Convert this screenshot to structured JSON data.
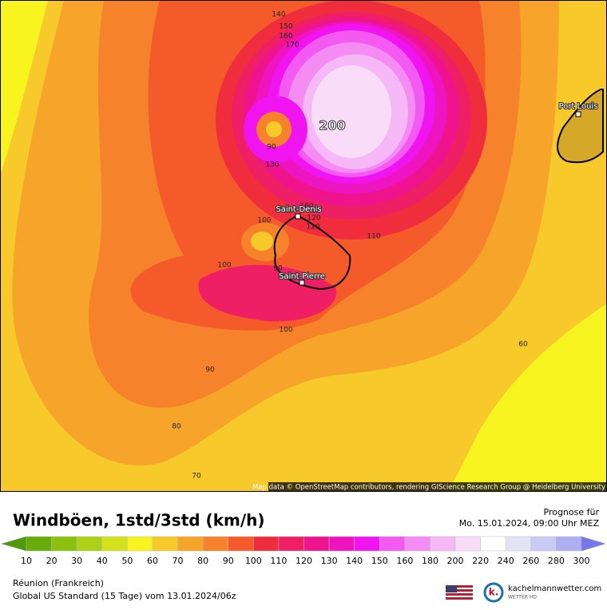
{
  "map": {
    "contour_labels": [
      140,
      150,
      160,
      170,
      200,
      90,
      130,
      160,
      100,
      120,
      120,
      110,
      100,
      90,
      100,
      90,
      80,
      70,
      60
    ],
    "places": [
      "Port Louis",
      "Saint-Denis",
      "Saint-Pierre"
    ],
    "attribution": "Map data © OpenStreetMap contributors, rendering GIScience Research Group @ Heidelberg University"
  },
  "header": {
    "title": "Windböen, 1std/3std (km/h)",
    "forecast_label": "Prognose für",
    "forecast_time": "Mo. 15.01.2024, 09:00 Uhr MEZ"
  },
  "legend": {
    "values": [
      10,
      20,
      30,
      40,
      50,
      60,
      70,
      80,
      90,
      100,
      110,
      120,
      130,
      140,
      150,
      160,
      180,
      200,
      220,
      240,
      260,
      280,
      300
    ],
    "colors": [
      "#4f9a0a",
      "#6aab0c",
      "#8cc00f",
      "#aed018",
      "#d4e21e",
      "#f8f420",
      "#f7c92a",
      "#f6a52a",
      "#f6822b",
      "#f55a2b",
      "#f02d3c",
      "#ef1f66",
      "#ef148e",
      "#ee14c0",
      "#f014f0",
      "#f25af2",
      "#f48cf4",
      "#f6b8f6",
      "#f8dcf8",
      "#ffffff",
      "#e4e4f6",
      "#cacaf4",
      "#aeaef2",
      "#9494f0",
      "#7878ee"
    ]
  },
  "footer": {
    "region": "Réunion (Frankreich)",
    "model": "Global US Standard (15 Tage) vom 13.01.2024/06z",
    "brand": "kachelmannwetter.com",
    "brand_sub": "WETTER HD"
  }
}
